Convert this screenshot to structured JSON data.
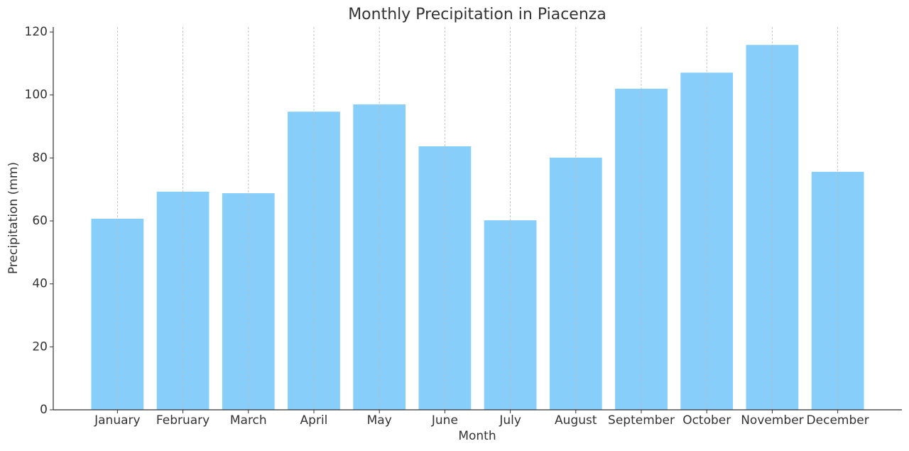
{
  "chart_data": {
    "type": "bar",
    "title": "Monthly Precipitation in Piacenza",
    "x_label": "Month",
    "y_label": "Precipitation (mm)",
    "categories": [
      "January",
      "February",
      "March",
      "April",
      "May",
      "June",
      "July",
      "August",
      "September",
      "October",
      "November",
      "December"
    ],
    "values": [
      60.7,
      69.3,
      68.8,
      94.7,
      97.0,
      83.7,
      60.2,
      80.1,
      102.0,
      107.1,
      115.9,
      75.6
    ],
    "color": "#87cefa",
    "ylim": [
      0,
      121.6
    ],
    "yticks": [
      0,
      20,
      40,
      60,
      80,
      100,
      120
    ],
    "grid": "x"
  }
}
